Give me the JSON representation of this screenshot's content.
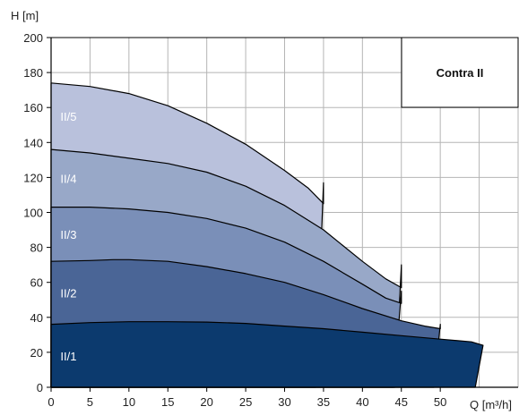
{
  "chart_data": {
    "type": "area",
    "title": "Contra II",
    "ylabel": "H [m]",
    "xlabel": "Q [m³/h]",
    "xlim": [
      0,
      60
    ],
    "ylim": [
      0,
      200
    ],
    "x_ticks": [
      "0",
      "5",
      "10",
      "15",
      "20",
      "25",
      "30",
      "35",
      "40",
      "45",
      "50"
    ],
    "y_ticks": [
      "0",
      "20",
      "40",
      "60",
      "80",
      "100",
      "120",
      "140",
      "160",
      "180",
      "200"
    ],
    "grid": true,
    "series": [
      {
        "name": "II/1",
        "color": "#0c3a6e",
        "upper": [
          [
            0,
            36
          ],
          [
            5,
            37
          ],
          [
            10,
            37.5
          ],
          [
            15,
            37.5
          ],
          [
            20,
            37.3
          ],
          [
            25,
            36.5
          ],
          [
            30,
            35
          ],
          [
            35,
            33.5
          ],
          [
            40,
            31.5
          ],
          [
            45,
            29.5
          ],
          [
            50,
            27.5
          ],
          [
            54,
            26
          ],
          [
            55.5,
            24
          ]
        ],
        "tip": [
          55.5,
          24
        ],
        "end_x": 54.5
      },
      {
        "name": "II/2",
        "color": "#4a6596",
        "upper": [
          [
            0,
            72
          ],
          [
            5,
            72.5
          ],
          [
            8,
            73
          ],
          [
            10,
            73
          ],
          [
            15,
            72
          ],
          [
            20,
            69
          ],
          [
            25,
            65
          ],
          [
            30,
            60
          ],
          [
            35,
            53
          ],
          [
            40,
            45
          ],
          [
            45,
            38
          ],
          [
            48,
            35
          ],
          [
            50,
            33.5
          ]
        ],
        "tip": [
          50,
          36
        ],
        "end_x": 49.2
      },
      {
        "name": "II/3",
        "color": "#7a8fb8",
        "upper": [
          [
            0,
            103
          ],
          [
            5,
            103
          ],
          [
            10,
            102
          ],
          [
            15,
            100
          ],
          [
            20,
            96.5
          ],
          [
            25,
            91
          ],
          [
            30,
            83
          ],
          [
            35,
            72
          ],
          [
            40,
            59
          ],
          [
            43,
            51
          ],
          [
            45,
            48
          ]
        ],
        "tip": [
          45,
          55
        ],
        "end_x": 44
      },
      {
        "name": "II/4",
        "color": "#98a8c8",
        "upper": [
          [
            0,
            136
          ],
          [
            5,
            134
          ],
          [
            10,
            131
          ],
          [
            15,
            128
          ],
          [
            20,
            123
          ],
          [
            25,
            115
          ],
          [
            30,
            104
          ],
          [
            35,
            90
          ],
          [
            40,
            72
          ],
          [
            43,
            62
          ],
          [
            45,
            57
          ]
        ],
        "tip": [
          45,
          70
        ],
        "end_x": 44.2
      },
      {
        "name": "II/5",
        "color": "#b9c1dc",
        "upper": [
          [
            0,
            174
          ],
          [
            5,
            172
          ],
          [
            10,
            168
          ],
          [
            15,
            161
          ],
          [
            20,
            151
          ],
          [
            25,
            139
          ],
          [
            30,
            124
          ],
          [
            33,
            114
          ],
          [
            35,
            105
          ]
        ],
        "tip": [
          35,
          117
        ],
        "end_x": 34
      }
    ]
  }
}
